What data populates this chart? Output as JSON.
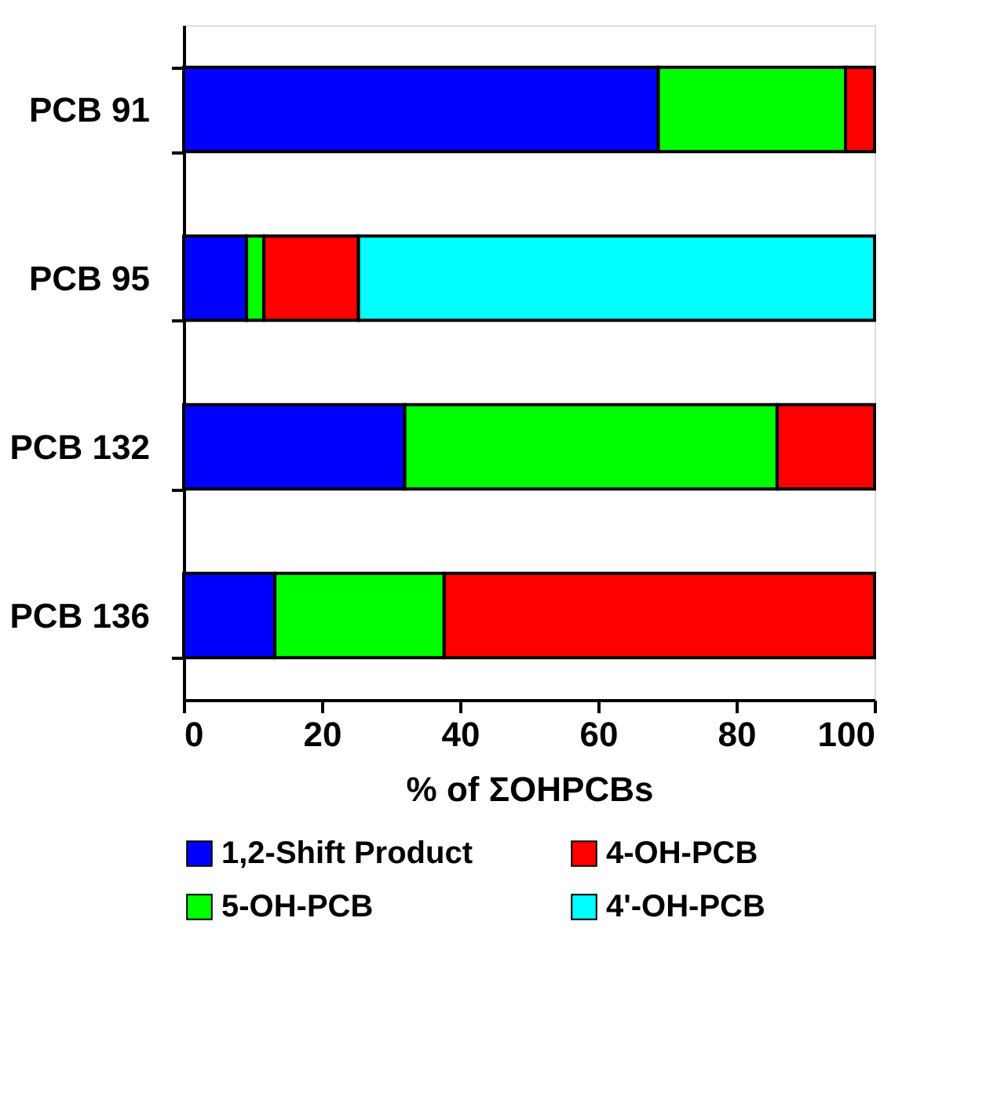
{
  "chart_data": {
    "type": "bar",
    "orientation": "horizontal",
    "stacked": true,
    "categories": [
      "PCB 91",
      "PCB 95",
      "PCB 132",
      "PCB 136"
    ],
    "series": [
      {
        "name": "1,2-Shift Product",
        "color": "#0000ff",
        "values": [
          68.7,
          9.1,
          32.0,
          13.2
        ]
      },
      {
        "name": "5-OH-PCB",
        "color": "#00ff00",
        "values": [
          27.1,
          2.5,
          53.9,
          24.5
        ]
      },
      {
        "name": "4-OH-PCB",
        "color": "#ff0000",
        "values": [
          4.2,
          13.7,
          14.1,
          62.3
        ]
      },
      {
        "name": "4'-OH-PCB",
        "color": "#00ffff",
        "values": [
          null,
          74.7,
          null,
          null
        ]
      }
    ],
    "xlabel": "% of ΣOHPCBs",
    "xlim": [
      0,
      100
    ],
    "xticks": [
      0,
      20,
      40,
      60,
      80,
      100
    ],
    "grid": false,
    "legend": "bottom"
  }
}
